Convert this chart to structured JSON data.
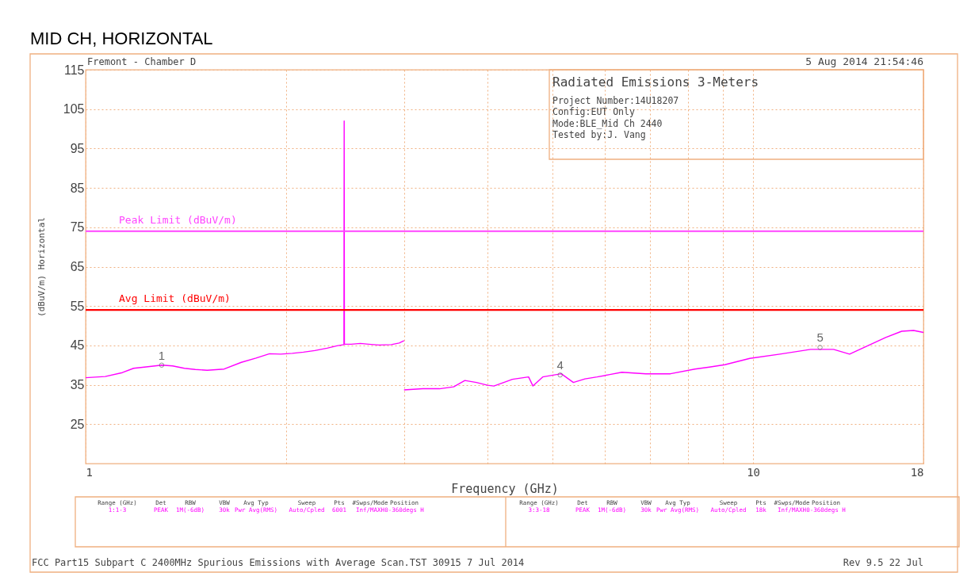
{
  "chart_data": {
    "type": "line",
    "title": "MID CH, HORIZONTAL",
    "xlabel": "Frequency (GHz)",
    "ylabel": "(dBuV/m) Horizontal",
    "log": "x",
    "xlim": [
      1,
      18
    ],
    "ylim": [
      15,
      115
    ],
    "xticks": [
      1,
      {
        "value": 2,
        "label": null
      },
      {
        "value": 3,
        "label": null
      },
      {
        "value": 4,
        "label": null
      },
      {
        "value": 5,
        "label": null
      },
      {
        "value": 6,
        "label": null
      },
      {
        "value": 7,
        "label": null
      },
      {
        "value": 8,
        "label": null
      },
      {
        "value": 9,
        "label": null
      },
      10,
      18
    ],
    "yticks": [
      25,
      35,
      45,
      55,
      65,
      75,
      85,
      95,
      105,
      115
    ],
    "grid": true,
    "line_style": "solid",
    "marker": "none",
    "series": [
      {
        "color": "#ff00ff",
        "x": [
          1,
          1.07,
          1.135,
          1.18,
          1.24,
          1.301,
          1.35,
          1.406,
          1.46,
          1.521,
          1.613,
          1.711,
          1.8,
          1.886,
          1.96,
          2.04,
          2.12,
          2.205,
          2.3,
          2.38,
          2.438,
          2.44,
          2.442,
          2.5,
          2.58,
          2.655,
          2.75,
          2.87,
          2.95,
          3.0
        ],
        "values": [
          36.8,
          37.1,
          38.1,
          39.2,
          39.6,
          40,
          39.8,
          39.2,
          38.9,
          38.7,
          39,
          40.7,
          41.8,
          42.9,
          42.8,
          43,
          43.3,
          43.7,
          44.3,
          44.9,
          45.2,
          102,
          45.3,
          45.3,
          45.5,
          45.3,
          45.1,
          45.2,
          45.6,
          46.2
        ]
      },
      {
        "color": "#ff00ff",
        "x": [
          3.0,
          3.2,
          3.39,
          3.56,
          3.7,
          3.85,
          4.0,
          4.09,
          4.28,
          4.36,
          4.61,
          4.68,
          4.84,
          5.16,
          5.38,
          5.6,
          5.84,
          6.1,
          6.36,
          6.91,
          7.52,
          8.18,
          8.6,
          9.07,
          9.89,
          10.97,
          12.2,
          13.2,
          13.95,
          14.98,
          15.8,
          16.7,
          17.4,
          18
        ],
        "values": [
          33.7,
          34,
          34,
          34.5,
          36.1,
          35.6,
          34.9,
          34.7,
          35.9,
          36.4,
          37,
          34.7,
          37,
          37.8,
          35.6,
          36.5,
          37,
          37.6,
          38.2,
          37.8,
          37.8,
          39,
          39.5,
          40.1,
          41.7,
          42.8,
          44,
          44,
          42.8,
          45.2,
          47,
          48.6,
          48.8,
          48.3
        ]
      }
    ],
    "ref_lines": [
      {
        "axis": "y",
        "value": 74,
        "label": "Peak Limit (dBuV/m)",
        "color": "#ff44ff",
        "line_style": "solid"
      },
      {
        "axis": "y",
        "value": 54,
        "label": "Avg Limit (dBuV/m)",
        "color": "#ff0000",
        "line_style": "solid"
      }
    ],
    "annotations": [
      {
        "text": "1",
        "x": 1.3,
        "y": 40
      },
      {
        "text": "4",
        "x": 5.14,
        "y": 37.5
      },
      {
        "text": "5",
        "x": 12.6,
        "y": 44.5
      },
      "Fremont - Chamber D",
      "5 Aug 2014   21:54:46",
      "Radiated Emissions 3-Meters",
      "Project Number:14U18207",
      "Config:EUT Only",
      "Mode:BLE_Mid Ch 2440",
      "Tested by:J. Vang",
      "Range (GHz)",
      "Det",
      "RBW",
      "VBW",
      "Avg Typ",
      "Sweep",
      "Pts",
      "#Swps/Mode",
      "Position",
      "1:1-3",
      "PEAK",
      "1M(-6dB)",
      "30k",
      "Pwr Avg(RMS)",
      "Auto/Cpled",
      "6001",
      "Inf/MAXH",
      "0-360degs H",
      "Range (GHz)",
      "Det",
      "RBW",
      "VBW",
      "Avg Typ",
      "Sweep",
      "Pts",
      "#Swps/Mode",
      "Position",
      "3:3-18",
      "PEAK",
      "1M(-6dB)",
      "30k",
      "Pwr Avg(RMS)",
      "Auto/Cpled",
      "18k",
      "Inf/MAXH",
      "0-360degs H",
      "FCC Part15 Subpart C 2400MHz Spurious Emissions with Average Scan.TST 30915  7 Jul 2014",
      "Rev 9.5 22 Jul"
    ]
  }
}
